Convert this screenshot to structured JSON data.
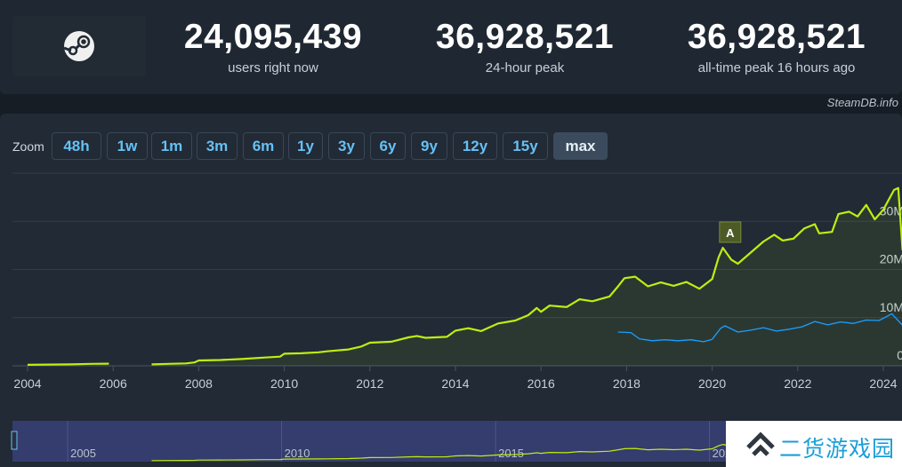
{
  "header": {
    "stats": [
      {
        "value": "24,095,439",
        "label": "users right now"
      },
      {
        "value": "36,928,521",
        "label": "24-hour peak"
      },
      {
        "value": "36,928,521",
        "label": "all-time peak 16 hours ago"
      }
    ],
    "credit": "SteamDB.info"
  },
  "zoom": {
    "label": "Zoom",
    "buttons": [
      "48h",
      "1w",
      "1m",
      "3m",
      "6m",
      "1y",
      "3y",
      "6y",
      "9y",
      "12y",
      "15y",
      "max"
    ],
    "active": "max"
  },
  "watermark": {
    "text": "二货游戏园"
  },
  "colors": {
    "users": "#beee11",
    "in_game": "#1a9fff",
    "annotation_bg": "#4c5a26"
  },
  "chart_data": {
    "type": "line",
    "title": "",
    "xlabel": "",
    "ylabel": "",
    "x_ticks": [
      "2004",
      "2006",
      "2008",
      "2010",
      "2012",
      "2014",
      "2016",
      "2018",
      "2020",
      "2022",
      "2024"
    ],
    "y_ticks": [
      "0",
      "10M",
      "20M",
      "30M"
    ],
    "xlim": [
      2003.7,
      2024.5
    ],
    "ylim": [
      0,
      40000000
    ],
    "grid": true,
    "annotations": [
      {
        "label": "A",
        "x": 2020.4
      }
    ],
    "series": [
      {
        "color_key": "users",
        "segments": [
          [
            [
              2004.0,
              200000
            ],
            [
              2004.5,
              250000
            ],
            [
              2005.0,
              300000
            ],
            [
              2005.5,
              400000
            ],
            [
              2005.9,
              450000
            ]
          ],
          [
            [
              2006.9,
              300000
            ],
            [
              2007.3,
              400000
            ],
            [
              2007.7,
              500000
            ],
            [
              2007.9,
              700000
            ],
            [
              2008.0,
              1100000
            ],
            [
              2008.5,
              1200000
            ],
            [
              2009.0,
              1400000
            ],
            [
              2009.5,
              1700000
            ],
            [
              2009.9,
              1900000
            ],
            [
              2010.0,
              2500000
            ],
            [
              2010.4,
              2600000
            ],
            [
              2010.8,
              2800000
            ],
            [
              2011.0,
              3000000
            ],
            [
              2011.5,
              3400000
            ],
            [
              2011.8,
              4000000
            ],
            [
              2012.0,
              4800000
            ],
            [
              2012.5,
              5000000
            ],
            [
              2012.9,
              5900000
            ],
            [
              2013.1,
              6200000
            ],
            [
              2013.3,
              5800000
            ],
            [
              2013.8,
              6000000
            ],
            [
              2014.0,
              7300000
            ],
            [
              2014.3,
              7800000
            ],
            [
              2014.6,
              7200000
            ],
            [
              2015.0,
              8800000
            ],
            [
              2015.4,
              9400000
            ],
            [
              2015.7,
              10500000
            ],
            [
              2015.9,
              12000000
            ],
            [
              2016.0,
              11200000
            ],
            [
              2016.2,
              12500000
            ],
            [
              2016.6,
              12200000
            ],
            [
              2016.9,
              13800000
            ],
            [
              2017.2,
              13400000
            ],
            [
              2017.6,
              14400000
            ],
            [
              2017.8,
              16500000
            ],
            [
              2017.95,
              18200000
            ],
            [
              2018.2,
              18500000
            ],
            [
              2018.5,
              16500000
            ],
            [
              2018.8,
              17300000
            ],
            [
              2019.1,
              16600000
            ],
            [
              2019.4,
              17400000
            ],
            [
              2019.7,
              16000000
            ],
            [
              2020.0,
              18000000
            ],
            [
              2020.15,
              22500000
            ],
            [
              2020.25,
              24500000
            ],
            [
              2020.45,
              22000000
            ],
            [
              2020.6,
              21200000
            ],
            [
              2020.9,
              23500000
            ],
            [
              2021.2,
              25800000
            ],
            [
              2021.45,
              27200000
            ],
            [
              2021.65,
              26000000
            ],
            [
              2021.9,
              26400000
            ],
            [
              2022.15,
              28500000
            ],
            [
              2022.4,
              29400000
            ],
            [
              2022.5,
              27500000
            ],
            [
              2022.8,
              27800000
            ],
            [
              2022.95,
              31500000
            ],
            [
              2023.2,
              32000000
            ],
            [
              2023.4,
              31000000
            ],
            [
              2023.6,
              33400000
            ],
            [
              2023.8,
              30400000
            ],
            [
              2024.0,
              32400000
            ],
            [
              2024.25,
              36500000
            ],
            [
              2024.35,
              36900000
            ],
            [
              2024.45,
              24000000
            ]
          ]
        ]
      },
      {
        "color_key": "in_game",
        "segments": [
          [
            [
              2017.8,
              7000000
            ],
            [
              2018.1,
              6900000
            ],
            [
              2018.3,
              5600000
            ],
            [
              2018.6,
              5200000
            ],
            [
              2018.9,
              5400000
            ],
            [
              2019.2,
              5200000
            ],
            [
              2019.5,
              5400000
            ],
            [
              2019.8,
              5000000
            ],
            [
              2020.0,
              5500000
            ],
            [
              2020.2,
              7800000
            ],
            [
              2020.3,
              8300000
            ],
            [
              2020.6,
              7000000
            ],
            [
              2020.9,
              7400000
            ],
            [
              2021.2,
              7900000
            ],
            [
              2021.5,
              7200000
            ],
            [
              2021.8,
              7600000
            ],
            [
              2022.1,
              8100000
            ],
            [
              2022.4,
              9200000
            ],
            [
              2022.7,
              8500000
            ],
            [
              2023.0,
              9100000
            ],
            [
              2023.3,
              8800000
            ],
            [
              2023.6,
              9500000
            ],
            [
              2023.9,
              9400000
            ],
            [
              2024.2,
              10800000
            ],
            [
              2024.45,
              8400000
            ]
          ]
        ]
      }
    ],
    "navigator": {
      "x_ticks": [
        "2005",
        "2010",
        "2015",
        "2020"
      ],
      "xlim": [
        2003.7,
        2024.5
      ]
    }
  }
}
